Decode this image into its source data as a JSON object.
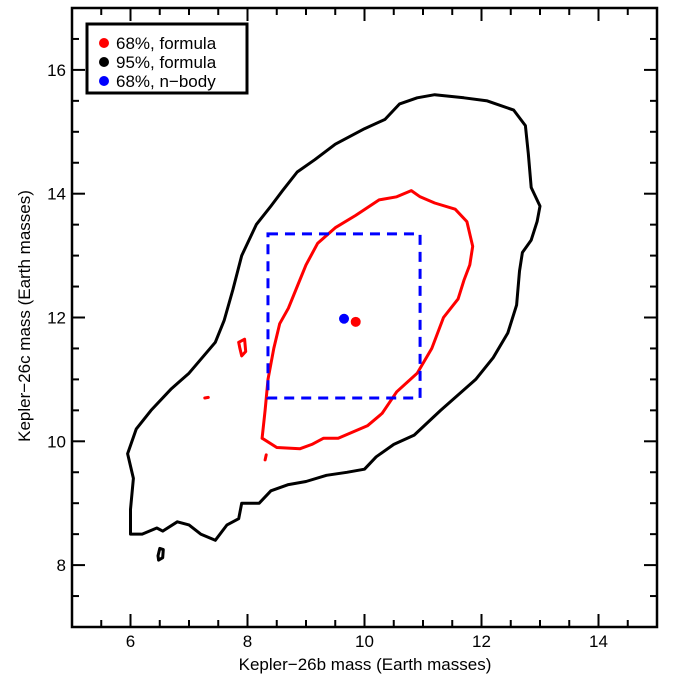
{
  "chart_data": {
    "type": "scatter",
    "title": "",
    "xlabel": "Kepler−26b mass (Earth masses)",
    "ylabel": "Kepler−26c mass (Earth masses)",
    "xlim": [
      5,
      15
    ],
    "ylim": [
      7,
      17
    ],
    "x_ticks": [
      6,
      8,
      10,
      12,
      14
    ],
    "y_ticks": [
      8,
      10,
      12,
      14,
      16
    ],
    "x_tick_labels": [
      "6",
      "8",
      "10",
      "12",
      "14"
    ],
    "y_tick_labels": [
      "8",
      "10",
      "12",
      "14",
      "16"
    ],
    "legend_position": "top-left",
    "legend": [
      {
        "label": "68%, formula",
        "color": "#ff0000"
      },
      {
        "label": "95%, formula",
        "color": "#000000"
      },
      {
        "label": "68%, n−body",
        "color": "#0000ff"
      }
    ],
    "series": [
      {
        "name": "95%, formula",
        "kind": "contour",
        "color": "#000000",
        "contours": [
          [
            [
              6.0,
              8.5
            ],
            [
              6.2,
              8.5
            ],
            [
              6.45,
              8.6
            ],
            [
              6.55,
              8.55
            ],
            [
              6.8,
              8.7
            ],
            [
              7.0,
              8.65
            ],
            [
              7.2,
              8.5
            ],
            [
              7.45,
              8.4
            ],
            [
              7.65,
              8.65
            ],
            [
              7.85,
              8.75
            ],
            [
              7.9,
              9.0
            ],
            [
              8.2,
              9.0
            ],
            [
              8.4,
              9.2
            ],
            [
              8.7,
              9.3
            ],
            [
              9.0,
              9.35
            ],
            [
              9.35,
              9.45
            ],
            [
              9.7,
              9.5
            ],
            [
              10.0,
              9.55
            ],
            [
              10.2,
              9.75
            ],
            [
              10.5,
              9.95
            ],
            [
              10.85,
              10.1
            ],
            [
              11.3,
              10.5
            ],
            [
              11.9,
              11.0
            ],
            [
              12.2,
              11.35
            ],
            [
              12.45,
              11.75
            ],
            [
              12.6,
              12.2
            ],
            [
              12.65,
              12.75
            ],
            [
              12.7,
              13.05
            ],
            [
              12.85,
              13.25
            ],
            [
              12.95,
              13.55
            ],
            [
              13.0,
              13.8
            ],
            [
              12.85,
              14.1
            ],
            [
              12.8,
              14.65
            ],
            [
              12.75,
              15.1
            ],
            [
              12.55,
              15.35
            ],
            [
              12.1,
              15.5
            ],
            [
              11.7,
              15.55
            ],
            [
              11.2,
              15.6
            ],
            [
              10.9,
              15.55
            ],
            [
              10.6,
              15.45
            ],
            [
              10.35,
              15.2
            ],
            [
              10.0,
              15.05
            ],
            [
              9.5,
              14.8
            ],
            [
              9.15,
              14.55
            ],
            [
              8.85,
              14.35
            ],
            [
              8.6,
              14.05
            ],
            [
              8.4,
              13.8
            ],
            [
              8.15,
              13.5
            ],
            [
              7.9,
              13.0
            ],
            [
              7.75,
              12.45
            ],
            [
              7.6,
              11.95
            ],
            [
              7.45,
              11.6
            ],
            [
              7.0,
              11.1
            ],
            [
              6.7,
              10.85
            ],
            [
              6.35,
              10.5
            ],
            [
              6.1,
              10.2
            ],
            [
              5.95,
              9.8
            ],
            [
              6.05,
              9.4
            ],
            [
              6.0,
              8.9
            ],
            [
              6.0,
              8.5
            ]
          ],
          [
            [
              6.48,
              8.08
            ],
            [
              6.55,
              8.12
            ],
            [
              6.56,
              8.25
            ],
            [
              6.5,
              8.27
            ],
            [
              6.47,
              8.15
            ],
            [
              6.48,
              8.08
            ]
          ]
        ]
      },
      {
        "name": "68%, formula",
        "kind": "contour",
        "color": "#ff0000",
        "contours": [
          [
            [
              8.25,
              10.05
            ],
            [
              8.5,
              9.9
            ],
            [
              8.9,
              9.88
            ],
            [
              9.1,
              9.95
            ],
            [
              9.3,
              10.05
            ],
            [
              9.55,
              10.05
            ],
            [
              9.8,
              10.15
            ],
            [
              10.05,
              10.25
            ],
            [
              10.3,
              10.45
            ],
            [
              10.55,
              10.8
            ],
            [
              10.9,
              11.1
            ],
            [
              11.15,
              11.5
            ],
            [
              11.35,
              12.0
            ],
            [
              11.6,
              12.3
            ],
            [
              11.7,
              12.6
            ],
            [
              11.8,
              12.85
            ],
            [
              11.85,
              13.15
            ],
            [
              11.75,
              13.55
            ],
            [
              11.55,
              13.75
            ],
            [
              11.2,
              13.85
            ],
            [
              10.95,
              13.95
            ],
            [
              10.8,
              14.05
            ],
            [
              10.55,
              13.95
            ],
            [
              10.25,
              13.9
            ],
            [
              9.85,
              13.65
            ],
            [
              9.5,
              13.45
            ],
            [
              9.2,
              13.2
            ],
            [
              9.0,
              12.85
            ],
            [
              8.85,
              12.5
            ],
            [
              8.7,
              12.15
            ],
            [
              8.55,
              11.9
            ],
            [
              8.45,
              11.5
            ],
            [
              8.35,
              11.0
            ],
            [
              8.3,
              10.5
            ],
            [
              8.25,
              10.05
            ]
          ],
          [
            [
              7.85,
              11.6
            ],
            [
              7.95,
              11.65
            ],
            [
              7.97,
              11.45
            ],
            [
              7.9,
              11.38
            ],
            [
              7.87,
              11.5
            ],
            [
              7.85,
              11.6
            ]
          ],
          [
            [
              7.27,
              10.7
            ],
            [
              7.33,
              10.71
            ]
          ],
          [
            [
              8.3,
              9.7
            ],
            [
              8.32,
              9.78
            ]
          ]
        ]
      },
      {
        "name": "68%, n−body",
        "kind": "box",
        "color": "#0000ff",
        "x_range": [
          8.35,
          10.95
        ],
        "y_range": [
          10.7,
          13.35
        ]
      }
    ],
    "points": [
      {
        "x": 9.85,
        "y": 11.93,
        "color": "#ff0000"
      },
      {
        "x": 9.65,
        "y": 11.98,
        "color": "#0000ff"
      }
    ]
  }
}
